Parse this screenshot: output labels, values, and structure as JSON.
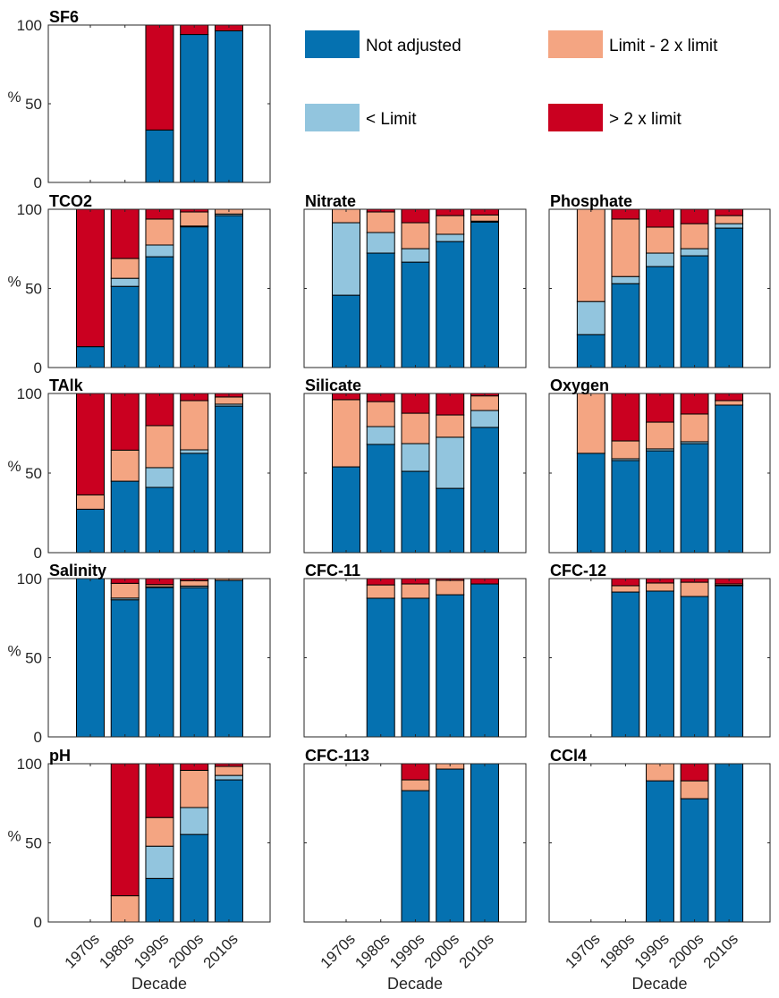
{
  "figure": {
    "description": "Stacked bar charts of adjustment category share per decade for each parameter"
  },
  "legend": {
    "position": "top-right",
    "items": [
      {
        "label": "Not adjusted",
        "color": "#0571b0"
      },
      {
        "label": "< Limit",
        "color": "#92c5de"
      },
      {
        "label": "Limit - 2 x limit",
        "color": "#f4a582"
      },
      {
        "label": "> 2 x limit",
        "color": "#ca0020"
      }
    ]
  },
  "chart_data": [
    {
      "type": "bar",
      "stacked": true,
      "title": "SF6",
      "categories": [
        "1970s",
        "1980s",
        "1990s",
        "2000s",
        "2010s"
      ],
      "ylabel": "%",
      "xlabel": "",
      "ylim": [
        0,
        100
      ],
      "yticks": [
        0,
        50,
        100
      ],
      "series": [
        {
          "name": "Not adjusted",
          "values": [
            null,
            null,
            33.3,
            94.0,
            96.3
          ]
        },
        {
          "name": "< Limit",
          "values": [
            null,
            null,
            0,
            0,
            0
          ]
        },
        {
          "name": "Limit - 2 x limit",
          "values": [
            null,
            null,
            0,
            0,
            0
          ]
        },
        {
          "name": "> 2 x limit",
          "values": [
            null,
            null,
            66.7,
            6.0,
            3.7
          ]
        }
      ]
    },
    {
      "type": "bar",
      "stacked": true,
      "title": "TCO2",
      "categories": [
        "1970s",
        "1980s",
        "1990s",
        "2000s",
        "2010s"
      ],
      "ylabel": "%",
      "xlabel": "",
      "ylim": [
        0,
        100
      ],
      "yticks": [
        0,
        50,
        100
      ],
      "series": [
        {
          "name": "Not adjusted",
          "values": [
            13.2,
            51.3,
            70.0,
            88.9,
            96.0
          ]
        },
        {
          "name": "< Limit",
          "values": [
            0,
            5.1,
            7.4,
            0.5,
            1.0
          ]
        },
        {
          "name": "Limit - 2 x limit",
          "values": [
            0,
            12.5,
            16.4,
            8.9,
            3.0
          ]
        },
        {
          "name": "> 2 x limit",
          "values": [
            86.8,
            31.1,
            6.2,
            1.7,
            0
          ]
        }
      ]
    },
    {
      "type": "bar",
      "stacked": true,
      "title": "Nitrate",
      "categories": [
        "1970s",
        "1980s",
        "1990s",
        "2000s",
        "2010s"
      ],
      "ylabel": "",
      "xlabel": "",
      "ylim": [
        0,
        100
      ],
      "yticks": [
        0,
        50,
        100
      ],
      "series": [
        {
          "name": "Not adjusted",
          "values": [
            45.7,
            72.3,
            66.6,
            79.6,
            91.9
          ]
        },
        {
          "name": "< Limit",
          "values": [
            45.8,
            13.0,
            8.5,
            4.6,
            0.6
          ]
        },
        {
          "name": "Limit - 2 x limit",
          "values": [
            8.5,
            13.0,
            16.4,
            11.8,
            3.9
          ]
        },
        {
          "name": "> 2 x limit",
          "values": [
            0,
            1.7,
            8.5,
            4.0,
            3.6
          ]
        }
      ]
    },
    {
      "type": "bar",
      "stacked": true,
      "title": "Phosphate",
      "categories": [
        "1970s",
        "1980s",
        "1990s",
        "2000s",
        "2010s"
      ],
      "ylabel": "",
      "xlabel": "",
      "ylim": [
        0,
        100
      ],
      "yticks": [
        0,
        50,
        100
      ],
      "series": [
        {
          "name": "Not adjusted",
          "values": [
            20.8,
            53.0,
            63.8,
            70.6,
            88.1
          ]
        },
        {
          "name": "< Limit",
          "values": [
            20.9,
            4.5,
            8.5,
            4.5,
            2.8
          ]
        },
        {
          "name": "Limit - 2 x limit",
          "values": [
            58.3,
            36.3,
            16.4,
            15.8,
            5.1
          ]
        },
        {
          "name": "> 2 x limit",
          "values": [
            0,
            6.2,
            11.3,
            9.1,
            4.0
          ]
        }
      ]
    },
    {
      "type": "bar",
      "stacked": true,
      "title": "TAlk",
      "categories": [
        "1970s",
        "1980s",
        "1990s",
        "2000s",
        "2010s"
      ],
      "ylabel": "%",
      "xlabel": "",
      "ylim": [
        0,
        100
      ],
      "yticks": [
        0,
        50,
        100
      ],
      "series": [
        {
          "name": "Not adjusted",
          "values": [
            27.3,
            44.9,
            41.0,
            62.4,
            92.1
          ]
        },
        {
          "name": "< Limit",
          "values": [
            0,
            0,
            12.4,
            2.2,
            1.2
          ]
        },
        {
          "name": "Limit - 2 x limit",
          "values": [
            9.0,
            19.5,
            26.4,
            30.9,
            4.5
          ]
        },
        {
          "name": "> 2 x limit",
          "values": [
            63.7,
            35.6,
            20.2,
            4.5,
            2.2
          ]
        }
      ]
    },
    {
      "type": "bar",
      "stacked": true,
      "title": "Silicate",
      "categories": [
        "1970s",
        "1980s",
        "1990s",
        "2000s",
        "2010s"
      ],
      "ylabel": "",
      "xlabel": "",
      "ylim": [
        0,
        100
      ],
      "yticks": [
        0,
        50,
        100
      ],
      "series": [
        {
          "name": "Not adjusted",
          "values": [
            53.9,
            68.0,
            51.1,
            40.4,
            78.7
          ]
        },
        {
          "name": "< Limit",
          "values": [
            0,
            11.2,
            17.4,
            32.1,
            10.6
          ]
        },
        {
          "name": "Limit - 2 x limit",
          "values": [
            42.2,
            15.7,
            19.1,
            14.0,
            9.2
          ]
        },
        {
          "name": "> 2 x limit",
          "values": [
            3.9,
            5.1,
            12.4,
            13.5,
            1.5
          ]
        }
      ]
    },
    {
      "type": "bar",
      "stacked": true,
      "title": "Oxygen",
      "categories": [
        "1970s",
        "1980s",
        "1990s",
        "2000s",
        "2010s"
      ],
      "ylabel": "",
      "xlabel": "",
      "ylim": [
        0,
        100
      ],
      "yticks": [
        0,
        50,
        100
      ],
      "series": [
        {
          "name": "Not adjusted",
          "values": [
            62.4,
            57.9,
            64.0,
            68.5,
            92.7
          ]
        },
        {
          "name": "< Limit",
          "values": [
            0,
            1.1,
            1.2,
            1.2,
            0
          ]
        },
        {
          "name": "Limit - 2 x limit",
          "values": [
            37.6,
            11.2,
            16.8,
            17.4,
            2.8
          ]
        },
        {
          "name": "> 2 x limit",
          "values": [
            0,
            29.8,
            18.0,
            12.9,
            4.5
          ]
        }
      ]
    },
    {
      "type": "bar",
      "stacked": true,
      "title": "Salinity",
      "categories": [
        "1970s",
        "1980s",
        "1990s",
        "2000s",
        "2010s"
      ],
      "ylabel": "%",
      "xlabel": "",
      "ylim": [
        0,
        100
      ],
      "yticks": [
        0,
        50,
        100
      ],
      "series": [
        {
          "name": "Not adjusted",
          "values": [
            100,
            86.6,
            94.4,
            94.3,
            98.9
          ]
        },
        {
          "name": "< Limit",
          "values": [
            0,
            1.1,
            0.4,
            1.0,
            0
          ]
        },
        {
          "name": "Limit - 2 x limit",
          "values": [
            0,
            9.3,
            1.4,
            3.3,
            1.1
          ]
        },
        {
          "name": "> 2 x limit",
          "values": [
            0,
            3.0,
            3.8,
            1.4,
            0
          ]
        }
      ]
    },
    {
      "type": "bar",
      "stacked": true,
      "title": "CFC-11",
      "categories": [
        "1970s",
        "1980s",
        "1990s",
        "2000s",
        "2010s"
      ],
      "ylabel": "",
      "xlabel": "",
      "ylim": [
        0,
        100
      ],
      "yticks": [
        0,
        50,
        100
      ],
      "series": [
        {
          "name": "Not adjusted",
          "values": [
            null,
            87.6,
            87.6,
            89.8,
            96.6
          ]
        },
        {
          "name": "< Limit",
          "values": [
            null,
            0,
            0,
            0,
            0
          ]
        },
        {
          "name": "Limit - 2 x limit",
          "values": [
            null,
            8.4,
            9.0,
            9.1,
            0
          ]
        },
        {
          "name": "> 2 x limit",
          "values": [
            null,
            4.0,
            3.4,
            1.1,
            3.4
          ]
        }
      ]
    },
    {
      "type": "bar",
      "stacked": true,
      "title": "CFC-12",
      "categories": [
        "1970s",
        "1980s",
        "1990s",
        "2000s",
        "2010s"
      ],
      "ylabel": "",
      "xlabel": "",
      "ylim": [
        0,
        100
      ],
      "yticks": [
        0,
        50,
        100
      ],
      "series": [
        {
          "name": "Not adjusted",
          "values": [
            null,
            91.5,
            92.1,
            88.7,
            95.5
          ]
        },
        {
          "name": "< Limit",
          "values": [
            null,
            0,
            0,
            0,
            0.3
          ]
        },
        {
          "name": "Limit - 2 x limit",
          "values": [
            null,
            4.0,
            5.1,
            9.0,
            0.8
          ]
        },
        {
          "name": "> 2 x limit",
          "values": [
            null,
            4.5,
            2.8,
            2.3,
            3.4
          ]
        }
      ]
    },
    {
      "type": "bar",
      "stacked": true,
      "title": "pH",
      "categories": [
        "1970s",
        "1980s",
        "1990s",
        "2000s",
        "2010s"
      ],
      "ylabel": "%",
      "xlabel": "Decade",
      "ylim": [
        0,
        100
      ],
      "yticks": [
        0,
        50,
        100
      ],
      "series": [
        {
          "name": "Not adjusted",
          "values": [
            null,
            0,
            27.5,
            55.3,
            89.8
          ]
        },
        {
          "name": "< Limit",
          "values": [
            null,
            0,
            20.4,
            17.0,
            2.8
          ]
        },
        {
          "name": "Limit - 2 x limit",
          "values": [
            null,
            16.6,
            18.1,
            23.5,
            5.7
          ]
        },
        {
          "name": "> 2 x limit",
          "values": [
            null,
            83.4,
            34.0,
            4.2,
            1.7
          ]
        }
      ]
    },
    {
      "type": "bar",
      "stacked": true,
      "title": "CFC-113",
      "categories": [
        "1970s",
        "1980s",
        "1990s",
        "2000s",
        "2010s"
      ],
      "ylabel": "",
      "xlabel": "Decade",
      "ylim": [
        0,
        100
      ],
      "yticks": [
        0,
        50,
        100
      ],
      "series": [
        {
          "name": "Not adjusted",
          "values": [
            null,
            null,
            83.0,
            96.6,
            100
          ]
        },
        {
          "name": "< Limit",
          "values": [
            null,
            null,
            0,
            0,
            0
          ]
        },
        {
          "name": "Limit - 2 x limit",
          "values": [
            null,
            null,
            6.8,
            3.4,
            0
          ]
        },
        {
          "name": "> 2 x limit",
          "values": [
            null,
            null,
            10.2,
            0,
            0
          ]
        }
      ]
    },
    {
      "type": "bar",
      "stacked": true,
      "title": "CCl4",
      "categories": [
        "1970s",
        "1980s",
        "1990s",
        "2000s",
        "2010s"
      ],
      "ylabel": "",
      "xlabel": "Decade",
      "ylim": [
        0,
        100
      ],
      "yticks": [
        0,
        50,
        100
      ],
      "series": [
        {
          "name": "Not adjusted",
          "values": [
            null,
            null,
            89.2,
            77.9,
            100
          ]
        },
        {
          "name": "< Limit",
          "values": [
            null,
            null,
            0,
            0,
            0
          ]
        },
        {
          "name": "Limit - 2 x limit",
          "values": [
            null,
            null,
            10.8,
            11.3,
            0
          ]
        },
        {
          "name": "> 2 x limit",
          "values": [
            null,
            null,
            0,
            10.8,
            0
          ]
        }
      ]
    }
  ]
}
